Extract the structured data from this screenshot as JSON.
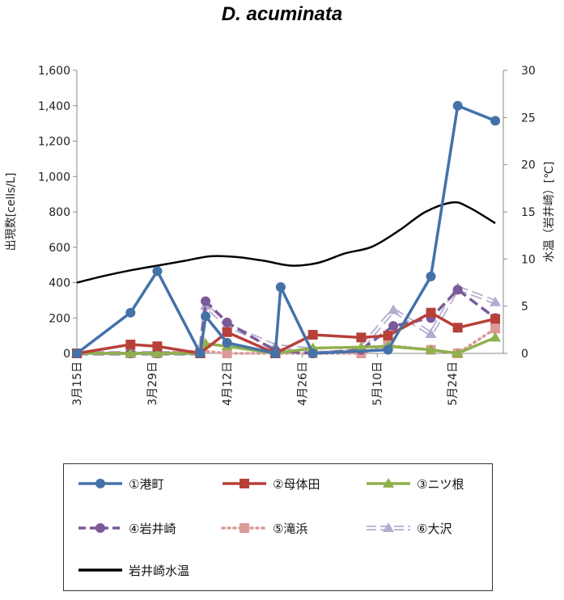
{
  "chart_data": {
    "type": "line",
    "title": "D. acuminata",
    "ylabel_left": "出現数[cells/L]",
    "ylabel_right": "水温（岩井崎）[℃]",
    "ylim_left": [
      0,
      1600
    ],
    "ylim_right": [
      0,
      30
    ],
    "yticks_left": [
      "0",
      "200",
      "400",
      "600",
      "800",
      "1,000",
      "1,200",
      "1,400",
      "1,600"
    ],
    "yticks_right": [
      "0",
      "5",
      "10",
      "15",
      "20",
      "25",
      "30"
    ],
    "xlim_days": [
      0,
      77
    ],
    "xticks": [
      {
        "label": "3月15日",
        "day": 0
      },
      {
        "label": "3月29日",
        "day": 14
      },
      {
        "label": "4月12日",
        "day": 28
      },
      {
        "label": "4月26日",
        "day": 42
      },
      {
        "label": "5月10日",
        "day": 56
      },
      {
        "label": "5月24日",
        "day": 70
      }
    ],
    "series": [
      {
        "name": "①港町",
        "color": "#4472a8",
        "marker": "circle",
        "dash": "solid",
        "x": [
          0,
          10,
          15,
          23,
          24,
          28,
          37,
          38,
          44,
          58,
          66,
          71,
          78
        ],
        "y": [
          0,
          230,
          465,
          0,
          210,
          60,
          0,
          375,
          0,
          20,
          435,
          1400,
          1315
        ]
      },
      {
        "name": "②母体田",
        "color": "#b8403a",
        "marker": "square",
        "dash": "solid",
        "x": [
          0,
          10,
          15,
          23,
          28,
          37,
          44,
          53,
          58,
          66,
          71,
          78
        ],
        "y": [
          0,
          50,
          40,
          0,
          120,
          0,
          105,
          90,
          100,
          230,
          145,
          195
        ]
      },
      {
        "name": "③ニツ根",
        "color": "#8fb04c",
        "marker": "triangle",
        "dash": "solid",
        "x": [
          0,
          10,
          15,
          23,
          24,
          28,
          37,
          44,
          53,
          58,
          66,
          71,
          78
        ],
        "y": [
          0,
          0,
          0,
          0,
          55,
          40,
          0,
          30,
          35,
          40,
          20,
          0,
          90
        ]
      },
      {
        "name": "④岩井崎",
        "color": "#7a5a9a",
        "marker": "circle",
        "dash": "dash",
        "x": [
          0,
          10,
          15,
          23,
          24,
          28,
          37,
          44,
          53,
          59,
          66,
          71,
          78
        ],
        "y": [
          0,
          0,
          0,
          0,
          295,
          175,
          15,
          0,
          20,
          155,
          200,
          360,
          200
        ]
      },
      {
        "name": "⑤滝浜",
        "color": "#dc9a98",
        "marker": "square",
        "dash": "dot",
        "x": [
          0,
          10,
          15,
          23,
          28,
          37,
          44,
          53,
          58,
          66,
          71,
          78
        ],
        "y": [
          0,
          0,
          0,
          15,
          0,
          0,
          0,
          0,
          45,
          20,
          0,
          140
        ]
      },
      {
        "name": "⑥大沢",
        "color": "#b6abcf",
        "marker": "triangle",
        "dash": "double",
        "x": [
          0,
          10,
          15,
          23,
          24,
          28,
          37,
          44,
          53,
          59,
          66,
          71,
          78
        ],
        "y": [
          0,
          0,
          0,
          0,
          270,
          160,
          40,
          20,
          30,
          245,
          110,
          370,
          290
        ]
      }
    ],
    "temperature": {
      "name": "岩井崎水温",
      "color": "#000000",
      "axis": "right",
      "x": [
        0,
        5,
        10,
        15,
        20,
        25,
        30,
        35,
        40,
        45,
        50,
        55,
        60,
        65,
        70,
        73,
        78
      ],
      "y": [
        7.5,
        8.2,
        8.8,
        9.3,
        9.8,
        10.3,
        10.2,
        9.8,
        9.3,
        9.6,
        10.6,
        11.3,
        13.0,
        15.0,
        16.0,
        15.5,
        13.8
      ]
    },
    "legend_position": "bottom"
  }
}
